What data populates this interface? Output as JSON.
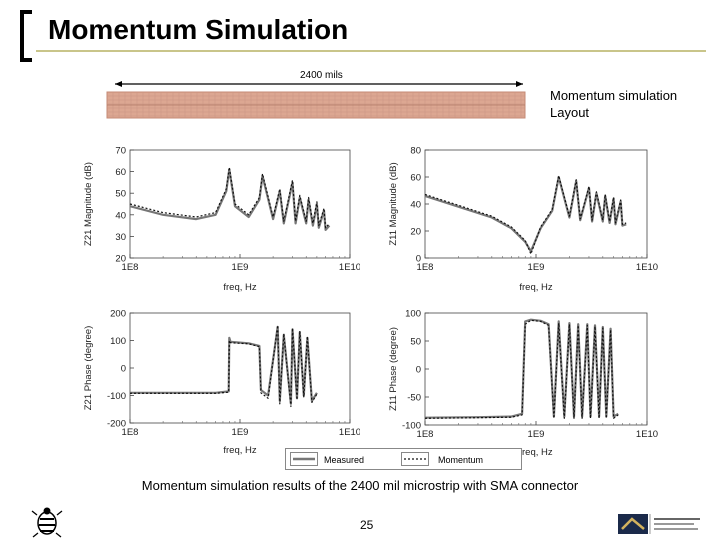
{
  "slide": {
    "title": "Momentum Simulation",
    "dimension_label": "2400 mils",
    "layout_label_line1": "Momentum simulation",
    "layout_label_line2": "Layout",
    "caption": "Momentum simulation results of the 2400 mil microstrip with SMA connector",
    "page_number": "25",
    "legend": {
      "measured": "Measured",
      "momentum": "Momentum"
    },
    "colors": {
      "title_rule": "#c9c58a",
      "strip": "#d9a48f",
      "measured": "#777777",
      "momentum": "#111111"
    }
  },
  "chart_data": [
    {
      "type": "line",
      "id": "z21-mag",
      "ylabel": "Z21 Magnitude (dB)",
      "xlabel": "freq, Hz",
      "xscale": "log",
      "xlim": [
        100000000.0,
        10000000000.0
      ],
      "xticks": [
        "1E8",
        "1E9",
        "1E10"
      ],
      "ylim": [
        20,
        70
      ],
      "yticks": [
        "20",
        "30",
        "40",
        "50",
        "60",
        "70"
      ],
      "series": [
        {
          "name": "Measured",
          "x": [
            100000000.0,
            200000000.0,
            400000000.0,
            600000000.0,
            750000000.0,
            800000000.0,
            900000000.0,
            1200000000.0,
            1500000000.0,
            1600000000.0,
            2000000000.0,
            2300000000.0,
            2500000000.0,
            3000000000.0,
            3200000000.0,
            3500000000.0,
            4000000000.0,
            4200000000.0,
            4600000000.0,
            5000000000.0,
            5200000000.0,
            5800000000.0,
            6000000000.0,
            6500000000.0
          ],
          "y": [
            44,
            40,
            38,
            40,
            51,
            61,
            44,
            39,
            47,
            58,
            38,
            51,
            36,
            55,
            36,
            48,
            36,
            47,
            35,
            45,
            34,
            42,
            33,
            35
          ]
        },
        {
          "name": "Momentum",
          "x": [
            100000000.0,
            200000000.0,
            400000000.0,
            600000000.0,
            750000000.0,
            800000000.0,
            900000000.0,
            1200000000.0,
            1500000000.0,
            1600000000.0,
            2000000000.0,
            2300000000.0,
            2500000000.0,
            3000000000.0,
            3200000000.0,
            3500000000.0,
            4000000000.0,
            4200000000.0,
            4600000000.0,
            5000000000.0,
            5200000000.0,
            5800000000.0,
            6000000000.0,
            6500000000.0
          ],
          "y": [
            45,
            41,
            39,
            41,
            52,
            62,
            45,
            40,
            48,
            59,
            39,
            52,
            37,
            56,
            37,
            49,
            37,
            48,
            36,
            46,
            35,
            43,
            34,
            36
          ]
        }
      ]
    },
    {
      "type": "line",
      "id": "z11-mag",
      "ylabel": "Z11 Magnitude (dB)",
      "xlabel": "freq, Hz",
      "xscale": "log",
      "xlim": [
        100000000.0,
        10000000000.0
      ],
      "xticks": [
        "1E8",
        "1E9",
        "1E10"
      ],
      "ylim": [
        0,
        80
      ],
      "yticks": [
        "0",
        "20",
        "40",
        "60",
        "80"
      ],
      "series": [
        {
          "name": "Measured",
          "x": [
            100000000.0,
            200000000.0,
            400000000.0,
            600000000.0,
            800000000.0,
            900000000.0,
            1100000000.0,
            1400000000.0,
            1600000000.0,
            2000000000.0,
            2300000000.0,
            2500000000.0,
            3000000000.0,
            3200000000.0,
            3500000000.0,
            4000000000.0,
            4200000000.0,
            4600000000.0,
            5000000000.0,
            5200000000.0,
            5800000000.0,
            6000000000.0,
            6500000000.0
          ],
          "y": [
            46,
            38,
            30,
            22,
            12,
            5,
            22,
            35,
            60,
            30,
            57,
            28,
            52,
            27,
            48,
            27,
            46,
            26,
            44,
            25,
            42,
            24,
            25
          ]
        },
        {
          "name": "Momentum",
          "x": [
            100000000.0,
            200000000.0,
            400000000.0,
            600000000.0,
            800000000.0,
            900000000.0,
            1100000000.0,
            1400000000.0,
            1600000000.0,
            2000000000.0,
            2300000000.0,
            2500000000.0,
            3000000000.0,
            3200000000.0,
            3500000000.0,
            4000000000.0,
            4200000000.0,
            4600000000.0,
            5000000000.0,
            5200000000.0,
            5800000000.0,
            6000000000.0,
            6500000000.0
          ],
          "y": [
            47,
            39,
            31,
            23,
            13,
            3,
            23,
            36,
            61,
            31,
            58,
            29,
            53,
            28,
            49,
            28,
            47,
            27,
            45,
            26,
            43,
            25,
            26
          ]
        }
      ]
    },
    {
      "type": "line",
      "id": "z21-phase",
      "ylabel": "Z21 Phase (degree)",
      "xlabel": "freq, Hz",
      "xscale": "log",
      "xlim": [
        100000000.0,
        10000000000.0
      ],
      "xticks": [
        "1E8",
        "1E9",
        "1E10"
      ],
      "ylim": [
        -200,
        200
      ],
      "yticks": [
        "-200",
        "-100",
        "0",
        "100",
        "200"
      ],
      "series": [
        {
          "name": "Measured",
          "x": [
            100000000.0,
            300000000.0,
            600000000.0,
            790000000.0,
            800000000.0,
            820000000.0,
            1200000000.0,
            1500000000.0,
            1550000000.0,
            1800000000.0,
            2200000000.0,
            2300000000.0,
            2500000000.0,
            2900000000.0,
            3000000000.0,
            3300000000.0,
            3500000000.0,
            3800000000.0,
            4100000000.0,
            4500000000.0,
            5000000000.0
          ],
          "y": [
            -90,
            -90,
            -90,
            -85,
            110,
            95,
            90,
            80,
            -80,
            -100,
            150,
            -120,
            120,
            -130,
            140,
            -110,
            130,
            -100,
            110,
            -120,
            -90
          ]
        },
        {
          "name": "Momentum",
          "x": [
            100000000.0,
            300000000.0,
            600000000.0,
            790000000.0,
            800000000.0,
            820000000.0,
            1200000000.0,
            1500000000.0,
            1550000000.0,
            1800000000.0,
            2200000000.0,
            2300000000.0,
            2500000000.0,
            2900000000.0,
            3000000000.0,
            3300000000.0,
            3500000000.0,
            3800000000.0,
            4100000000.0,
            4500000000.0,
            5000000000.0
          ],
          "y": [
            -92,
            -92,
            -92,
            -88,
            100,
            92,
            88,
            78,
            -90,
            -110,
            155,
            -130,
            125,
            -140,
            145,
            -115,
            135,
            -105,
            115,
            -125,
            -95
          ]
        }
      ]
    },
    {
      "type": "line",
      "id": "z11-phase",
      "ylabel": "Z11 Phase (degree)",
      "xlabel": "freq, Hz",
      "xscale": "log",
      "xlim": [
        100000000.0,
        10000000000.0
      ],
      "xticks": [
        "1E8",
        "1E9",
        "1E10"
      ],
      "ylim": [
        -100,
        100
      ],
      "yticks": [
        "-100",
        "-50",
        "0",
        "50",
        "100"
      ],
      "series": [
        {
          "name": "Measured",
          "x": [
            100000000.0,
            300000000.0,
            600000000.0,
            750000000.0,
            800000000.0,
            900000000.0,
            1100000000.0,
            1300000000.0,
            1450000000.0,
            1600000000.0,
            1800000000.0,
            2000000000.0,
            2200000000.0,
            2400000000.0,
            2600000000.0,
            2900000000.0,
            3100000000.0,
            3400000000.0,
            3700000000.0,
            4000000000.0,
            4300000000.0,
            4700000000.0,
            5000000000.0,
            5500000000.0
          ],
          "y": [
            -87,
            -86,
            -85,
            -80,
            85,
            88,
            86,
            80,
            -85,
            85,
            -85,
            82,
            -85,
            80,
            -85,
            80,
            -85,
            78,
            -85,
            75,
            -85,
            72,
            -85,
            -80
          ]
        },
        {
          "name": "Momentum",
          "x": [
            100000000.0,
            300000000.0,
            600000000.0,
            750000000.0,
            800000000.0,
            900000000.0,
            1100000000.0,
            1300000000.0,
            1450000000.0,
            1600000000.0,
            1800000000.0,
            2000000000.0,
            2200000000.0,
            2400000000.0,
            2600000000.0,
            2900000000.0,
            3100000000.0,
            3400000000.0,
            3700000000.0,
            4000000000.0,
            4300000000.0,
            4700000000.0,
            5000000000.0,
            5500000000.0
          ],
          "y": [
            -88,
            -87,
            -86,
            -82,
            80,
            87,
            85,
            78,
            -88,
            82,
            -88,
            80,
            -88,
            78,
            -88,
            78,
            -88,
            76,
            -88,
            73,
            -88,
            70,
            -88,
            -82
          ]
        }
      ]
    }
  ]
}
